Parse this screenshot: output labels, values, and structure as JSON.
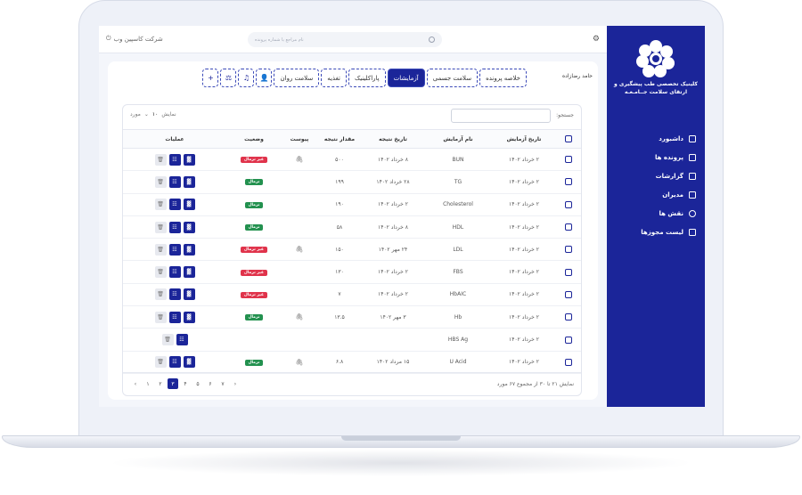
{
  "sidebar": {
    "brand": "کلینیک تخصصی طب پیشگیری و ارتقای سلامت جــامـعـه",
    "items": [
      {
        "label": "داشبورد",
        "icon": "monitor-icon"
      },
      {
        "label": "پرونده ها",
        "icon": "folder-icon"
      },
      {
        "label": "گزارشات",
        "icon": "chart-icon"
      },
      {
        "label": "مدیران",
        "icon": "list-icon"
      },
      {
        "label": "نقش ها",
        "icon": "user-role-icon"
      },
      {
        "label": "لیست مجوزها",
        "icon": "lock-icon"
      }
    ]
  },
  "topbar": {
    "search_placeholder": "نام مراجع یا شماره پرونده",
    "company": "شرکت کاسپین وب"
  },
  "patient": {
    "name": "حامد رضازاده"
  },
  "tabs": {
    "summary": "خلاصه پرونده",
    "physical": "سلامت جسمی",
    "tests": "آزمایشات",
    "paraclinic": "پاراکلینیک",
    "nutrition": "تغذیه",
    "mental": "سلامت روان",
    "add": "+"
  },
  "filter": {
    "search_label": "جستجو:",
    "show_label": "نمایش",
    "show_value": "۱۰",
    "records_label": "مورد"
  },
  "table": {
    "headers": {
      "test_date": "تاریخ آزمایش",
      "test_name": "نام آزمایش",
      "result_date": "تاریخ نتیجه",
      "result_value": "مقدار نتیجه",
      "attachment": "پیوست",
      "status": "وضعیت",
      "operations": "عملیات"
    },
    "status_labels": {
      "abnormal": "غیر نرمال",
      "normal": "نرمال"
    },
    "rows": [
      {
        "test_date": "۲ خرداد ۱۴۰۲",
        "name": "BUN",
        "result_date": "۸ خرداد ۱۴۰۲",
        "value": "۵۰۰",
        "attach": true,
        "status": "غیر نرمال",
        "ok": false,
        "full": true
      },
      {
        "test_date": "۲ خرداد ۱۴۰۲",
        "name": "TG",
        "result_date": "۲۸ خرداد ۱۴۰۲",
        "value": "۱۹۹",
        "attach": false,
        "status": "نرمال",
        "ok": true,
        "full": true
      },
      {
        "test_date": "۲ خرداد ۱۴۰۲",
        "name": "Cholesterol",
        "result_date": "۲ خرداد ۱۴۰۲",
        "value": "۱۹۰",
        "attach": false,
        "status": "نرمال",
        "ok": true,
        "full": true
      },
      {
        "test_date": "۲ خرداد ۱۴۰۲",
        "name": "HDL",
        "result_date": "۸ خرداد ۱۴۰۲",
        "value": "۵۸",
        "attach": false,
        "status": "نرمال",
        "ok": true,
        "full": true
      },
      {
        "test_date": "۲ خرداد ۱۴۰۲",
        "name": "LDL",
        "result_date": "۲۴ مهر ۱۴۰۲",
        "value": "۱۵۰",
        "attach": true,
        "status": "غیر نرمال",
        "ok": false,
        "full": true
      },
      {
        "test_date": "۲ خرداد ۱۴۰۲",
        "name": "FBS",
        "result_date": "۲ خرداد ۱۴۰۲",
        "value": "۱۳۰",
        "attach": false,
        "status": "غیر نرمال",
        "ok": false,
        "full": true
      },
      {
        "test_date": "۲ خرداد ۱۴۰۲",
        "name": "HbAIC",
        "result_date": "۲ خرداد ۱۴۰۲",
        "value": "۷",
        "attach": false,
        "status": "غیر نرمال",
        "ok": false,
        "full": true
      },
      {
        "test_date": "۲ خرداد ۱۴۰۲",
        "name": "Hb",
        "result_date": "۳ مهر ۱۴۰۲",
        "value": "۱۳.۵",
        "attach": true,
        "status": "نرمال",
        "ok": true,
        "full": true
      },
      {
        "test_date": "۲ خرداد ۱۴۰۲",
        "name": "HBS Ag",
        "result_date": "",
        "value": "",
        "attach": false,
        "status": "",
        "ok": true,
        "full": false
      },
      {
        "test_date": "۲ خرداد ۱۴۰۲",
        "name": "U Acid",
        "result_date": "۱۵ مرداد ۱۴۰۲",
        "value": "۶.۸",
        "attach": true,
        "status": "نرمال",
        "ok": true,
        "full": true
      }
    ]
  },
  "footer": {
    "summary": "نمایش ۲۱ تا ۳۰ از مجموع ۶۷ مورد",
    "pages": [
      "۱",
      "۲",
      "۳",
      "۴",
      "۵",
      "۶",
      "۷"
    ],
    "current": "۳"
  },
  "colors": {
    "primary": "#1b2599",
    "danger": "#e0334b",
    "success": "#23914f"
  }
}
